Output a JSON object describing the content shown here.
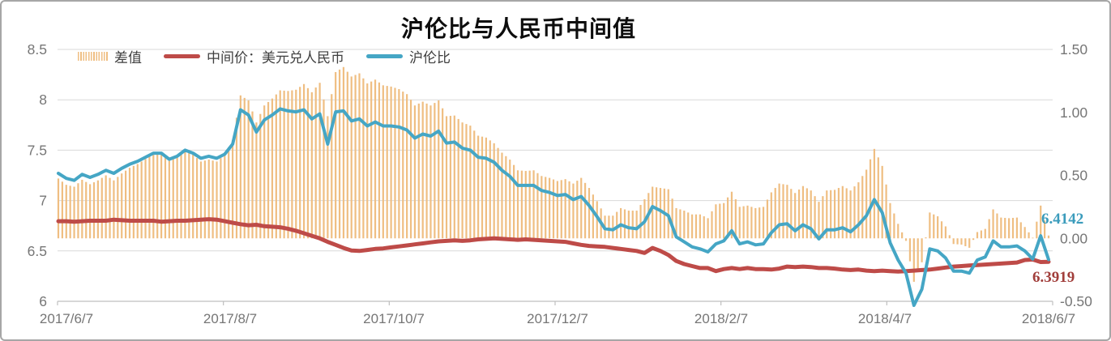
{
  "chart_data": {
    "type": "combo",
    "title": "沪伦比与人民币中间值",
    "legend": [
      {
        "label": "差值",
        "swatch": "striped-bar"
      },
      {
        "label": "中间价：美元兑人民币",
        "swatch": "line"
      },
      {
        "label": "沪伦比",
        "swatch": "line"
      }
    ],
    "colors": {
      "bar": "#efbe82",
      "mid_price_line": "#be4b48",
      "ratio_line": "#45a6c5",
      "grid": "#d9d9d9",
      "axis_line": "#bfbfbf",
      "tick_text": "#767676",
      "legend_text": "#3f3f3f",
      "title_text": "#0d0d0d",
      "figure_border": "#a6a6a6"
    },
    "x_axis": {
      "ticks": [
        "2017/6/7",
        "2017/8/7",
        "2017/10/7",
        "2017/12/7",
        "2018/2/7",
        "2018/4/7",
        "2018/6/7"
      ]
    },
    "left_axis": {
      "min": 6,
      "max": 8.5,
      "ticks": [
        {
          "label": "8.5",
          "value": 8.5
        },
        {
          "label": "8",
          "value": 8.0
        },
        {
          "label": "7.5",
          "value": 7.5
        },
        {
          "label": "7",
          "value": 7.0
        },
        {
          "label": "6.5",
          "value": 6.5
        },
        {
          "label": "6",
          "value": 6.0
        }
      ]
    },
    "right_axis": {
      "min": -0.5,
      "max": 1.5,
      "ticks": [
        {
          "label": "1.50",
          "value": 1.5
        },
        {
          "label": "1.00",
          "value": 1.0
        },
        {
          "label": "0.50",
          "value": 0.5
        },
        {
          "label": "0.00",
          "value": 0.0
        },
        {
          "label": "-0.50",
          "value": -0.5
        }
      ]
    },
    "series": {
      "ratio": {
        "name": "沪伦比",
        "type": "line",
        "axis": "left",
        "values": [
          7.27,
          7.22,
          7.2,
          7.26,
          7.23,
          7.26,
          7.3,
          7.27,
          7.32,
          7.36,
          7.39,
          7.43,
          7.47,
          7.47,
          7.41,
          7.44,
          7.5,
          7.47,
          7.42,
          7.44,
          7.42,
          7.46,
          7.56,
          7.9,
          7.85,
          7.68,
          7.8,
          7.85,
          7.91,
          7.89,
          7.88,
          7.9,
          7.81,
          7.86,
          7.56,
          7.88,
          7.89,
          7.79,
          7.81,
          7.74,
          7.78,
          7.74,
          7.74,
          7.73,
          7.7,
          7.62,
          7.66,
          7.64,
          7.69,
          7.57,
          7.58,
          7.52,
          7.5,
          7.43,
          7.42,
          7.38,
          7.3,
          7.24,
          7.15,
          7.15,
          7.15,
          7.1,
          7.08,
          7.05,
          7.06,
          7.01,
          7.04,
          6.95,
          6.84,
          6.72,
          6.71,
          6.76,
          6.73,
          6.72,
          6.79,
          6.94,
          6.9,
          6.85,
          6.64,
          6.59,
          6.54,
          6.52,
          6.49,
          6.57,
          6.6,
          6.7,
          6.57,
          6.59,
          6.56,
          6.57,
          6.68,
          6.76,
          6.77,
          6.7,
          6.76,
          6.72,
          6.62,
          6.71,
          6.71,
          6.73,
          6.69,
          6.76,
          6.85,
          7.01,
          6.88,
          6.58,
          6.41,
          6.28,
          5.96,
          6.12,
          6.52,
          6.5,
          6.43,
          6.3,
          6.3,
          6.28,
          6.41,
          6.44,
          6.6,
          6.54,
          6.54,
          6.55,
          6.5,
          6.42,
          6.65,
          6.4142
        ]
      },
      "mid_price": {
        "name": "中间价：美元兑人民币",
        "type": "line",
        "axis": "left",
        "values": [
          6.795,
          6.795,
          6.79,
          6.795,
          6.8,
          6.8,
          6.8,
          6.81,
          6.805,
          6.8,
          6.8,
          6.8,
          6.8,
          6.79,
          6.795,
          6.8,
          6.8,
          6.805,
          6.81,
          6.815,
          6.81,
          6.795,
          6.78,
          6.765,
          6.755,
          6.76,
          6.745,
          6.74,
          6.735,
          6.72,
          6.7,
          6.675,
          6.65,
          6.625,
          6.59,
          6.56,
          6.53,
          6.505,
          6.5,
          6.51,
          6.52,
          6.525,
          6.535,
          6.545,
          6.555,
          6.565,
          6.575,
          6.585,
          6.595,
          6.6,
          6.605,
          6.6,
          6.605,
          6.615,
          6.62,
          6.625,
          6.62,
          6.615,
          6.61,
          6.615,
          6.61,
          6.605,
          6.6,
          6.595,
          6.59,
          6.575,
          6.56,
          6.55,
          6.545,
          6.54,
          6.53,
          6.52,
          6.51,
          6.5,
          6.48,
          6.53,
          6.5,
          6.46,
          6.4,
          6.37,
          6.35,
          6.33,
          6.33,
          6.3,
          6.32,
          6.33,
          6.32,
          6.33,
          6.32,
          6.32,
          6.315,
          6.325,
          6.345,
          6.34,
          6.345,
          6.34,
          6.33,
          6.33,
          6.325,
          6.315,
          6.31,
          6.315,
          6.305,
          6.3,
          6.305,
          6.3,
          6.295,
          6.3,
          6.305,
          6.31,
          6.315,
          6.325,
          6.335,
          6.345,
          6.35,
          6.355,
          6.36,
          6.365,
          6.37,
          6.375,
          6.38,
          6.385,
          6.41,
          6.415,
          6.39,
          6.3919
        ]
      },
      "diff": {
        "name": "差值",
        "type": "bar",
        "axis": "right",
        "values": [
          0.475,
          0.425,
          0.41,
          0.465,
          0.43,
          0.46,
          0.5,
          0.46,
          0.515,
          0.56,
          0.59,
          0.63,
          0.67,
          0.68,
          0.615,
          0.64,
          0.7,
          0.665,
          0.61,
          0.625,
          0.61,
          0.665,
          0.78,
          1.135,
          1.095,
          0.92,
          1.055,
          1.11,
          1.175,
          1.17,
          1.18,
          1.225,
          1.16,
          1.235,
          0.97,
          1.32,
          1.36,
          1.285,
          1.31,
          1.23,
          1.26,
          1.215,
          1.205,
          1.185,
          1.145,
          1.055,
          1.085,
          1.055,
          1.095,
          0.97,
          0.975,
          0.92,
          0.895,
          0.815,
          0.8,
          0.755,
          0.68,
          0.625,
          0.54,
          0.535,
          0.54,
          0.495,
          0.48,
          0.455,
          0.47,
          0.435,
          0.48,
          0.4,
          0.295,
          0.18,
          0.18,
          0.24,
          0.22,
          0.22,
          0.31,
          0.41,
          0.4,
          0.39,
          0.24,
          0.22,
          0.19,
          0.19,
          0.16,
          0.27,
          0.28,
          0.37,
          0.25,
          0.26,
          0.24,
          0.25,
          0.365,
          0.435,
          0.425,
          0.36,
          0.415,
          0.38,
          0.29,
          0.38,
          0.385,
          0.415,
          0.38,
          0.445,
          0.545,
          0.71,
          0.575,
          0.28,
          0.115,
          -0.02,
          -0.345,
          -0.19,
          0.205,
          0.175,
          0.095,
          -0.045,
          -0.05,
          -0.075,
          0.05,
          0.075,
          0.23,
          0.165,
          0.16,
          0.165,
          0.09,
          0.005,
          0.26,
          0.0223
        ]
      }
    },
    "end_labels": [
      {
        "text": "6.4142",
        "series": "沪伦比",
        "color": "#3b9cbc"
      },
      {
        "text": "6.3919",
        "series": "中间价：美元兑人民币",
        "color": "#a13e3b"
      }
    ]
  }
}
